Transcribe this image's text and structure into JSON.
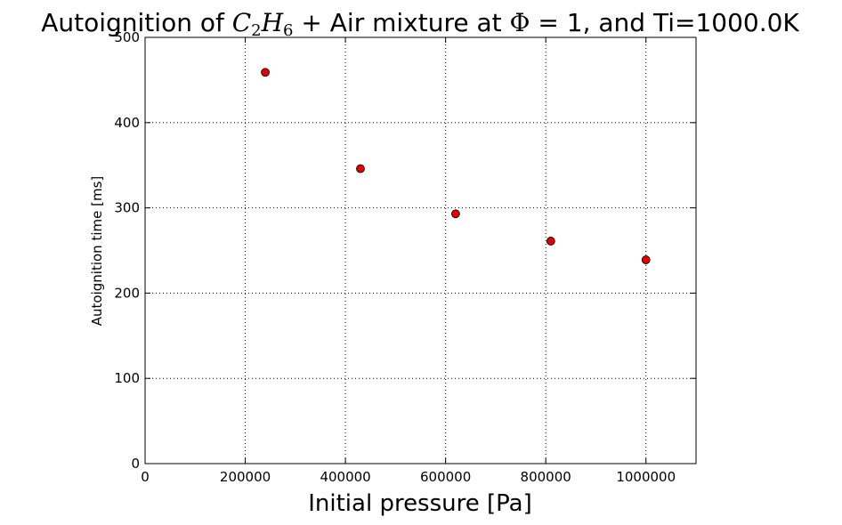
{
  "chart_data": {
    "type": "scatter",
    "title": {
      "prefix": "Autoignition of ",
      "math": [
        {
          "base": "C",
          "sub": "2"
        },
        {
          "base": "H",
          "sub": "6"
        }
      ],
      "middle": " + Air mixture at ",
      "phi": "Φ",
      "suffix": " = 1, and Ti=1000.0K"
    },
    "xlabel": "Initial pressure [Pa]",
    "ylabel": "Autoignition time [ms]",
    "xlim": [
      0,
      1100000
    ],
    "ylim": [
      0,
      500
    ],
    "xticks": [
      0,
      200000,
      400000,
      600000,
      800000,
      1000000
    ],
    "yticks": [
      0,
      100,
      200,
      300,
      400,
      500
    ],
    "grid": true,
    "series": [
      {
        "marker_color": "#e00000",
        "x": [
          240000,
          430000,
          620000,
          810000,
          1000000
        ],
        "y": [
          459,
          346,
          293,
          261,
          239
        ]
      }
    ]
  }
}
